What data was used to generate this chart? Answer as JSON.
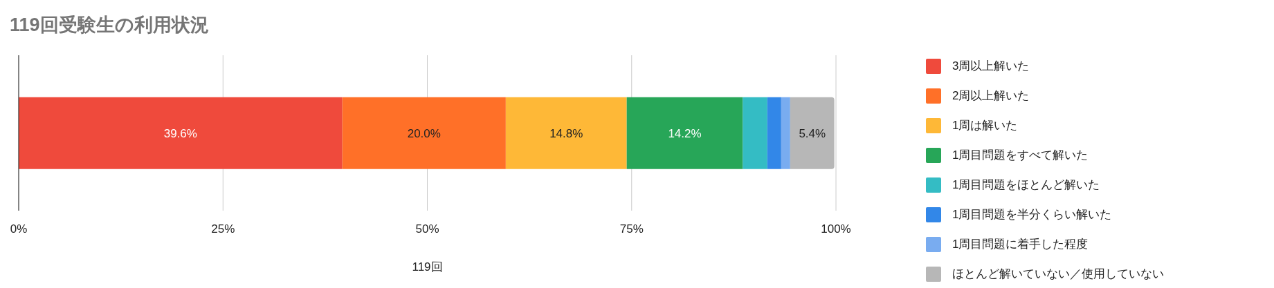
{
  "chart_data": {
    "type": "bar",
    "title": "119回受験生の利用状況",
    "xlabel": "119回",
    "orientation": "horizontal",
    "stacked": true,
    "categories": [
      null
    ],
    "series": [
      {
        "name": "3周以上解いた",
        "color": "#ef4a3c",
        "values": [
          39.6
        ],
        "value_labels": [
          "39.6%"
        ]
      },
      {
        "name": "2周以上解いた",
        "color": "#ff7028",
        "values": [
          20.0
        ],
        "value_labels": [
          "20.0%"
        ]
      },
      {
        "name": "1周は解いた",
        "color": "#feb837",
        "values": [
          14.8
        ],
        "value_labels": [
          "14.8%"
        ]
      },
      {
        "name": "1周目問題をすべて解いた",
        "color": "#27a658",
        "values": [
          14.2
        ],
        "value_labels": [
          "14.2%"
        ]
      },
      {
        "name": "1周目問題をほとんど解いた",
        "color": "#34bcc4",
        "values": [
          3.0
        ],
        "value_labels": [
          null
        ]
      },
      {
        "name": "1周目問題を半分くらい解いた",
        "color": "#3287e8",
        "values": [
          1.7
        ],
        "value_labels": [
          null
        ]
      },
      {
        "name": "1周目問題に着手した程度",
        "color": "#79acf0",
        "values": [
          1.1
        ],
        "value_labels": [
          null
        ]
      },
      {
        "name": "ほとんど解いていない／使用していない",
        "color": "#b7b7b7",
        "values": [
          5.4
        ],
        "value_labels": [
          "5.4%"
        ]
      }
    ],
    "xlim": [
      0,
      100
    ],
    "xticks": [
      {
        "value": 0,
        "label": "0%"
      },
      {
        "value": 25,
        "label": "25%"
      },
      {
        "value": 50,
        "label": "50%"
      },
      {
        "value": 75,
        "label": "75%"
      },
      {
        "value": 100,
        "label": "100%"
      }
    ],
    "grid": "x",
    "legend": "right"
  }
}
